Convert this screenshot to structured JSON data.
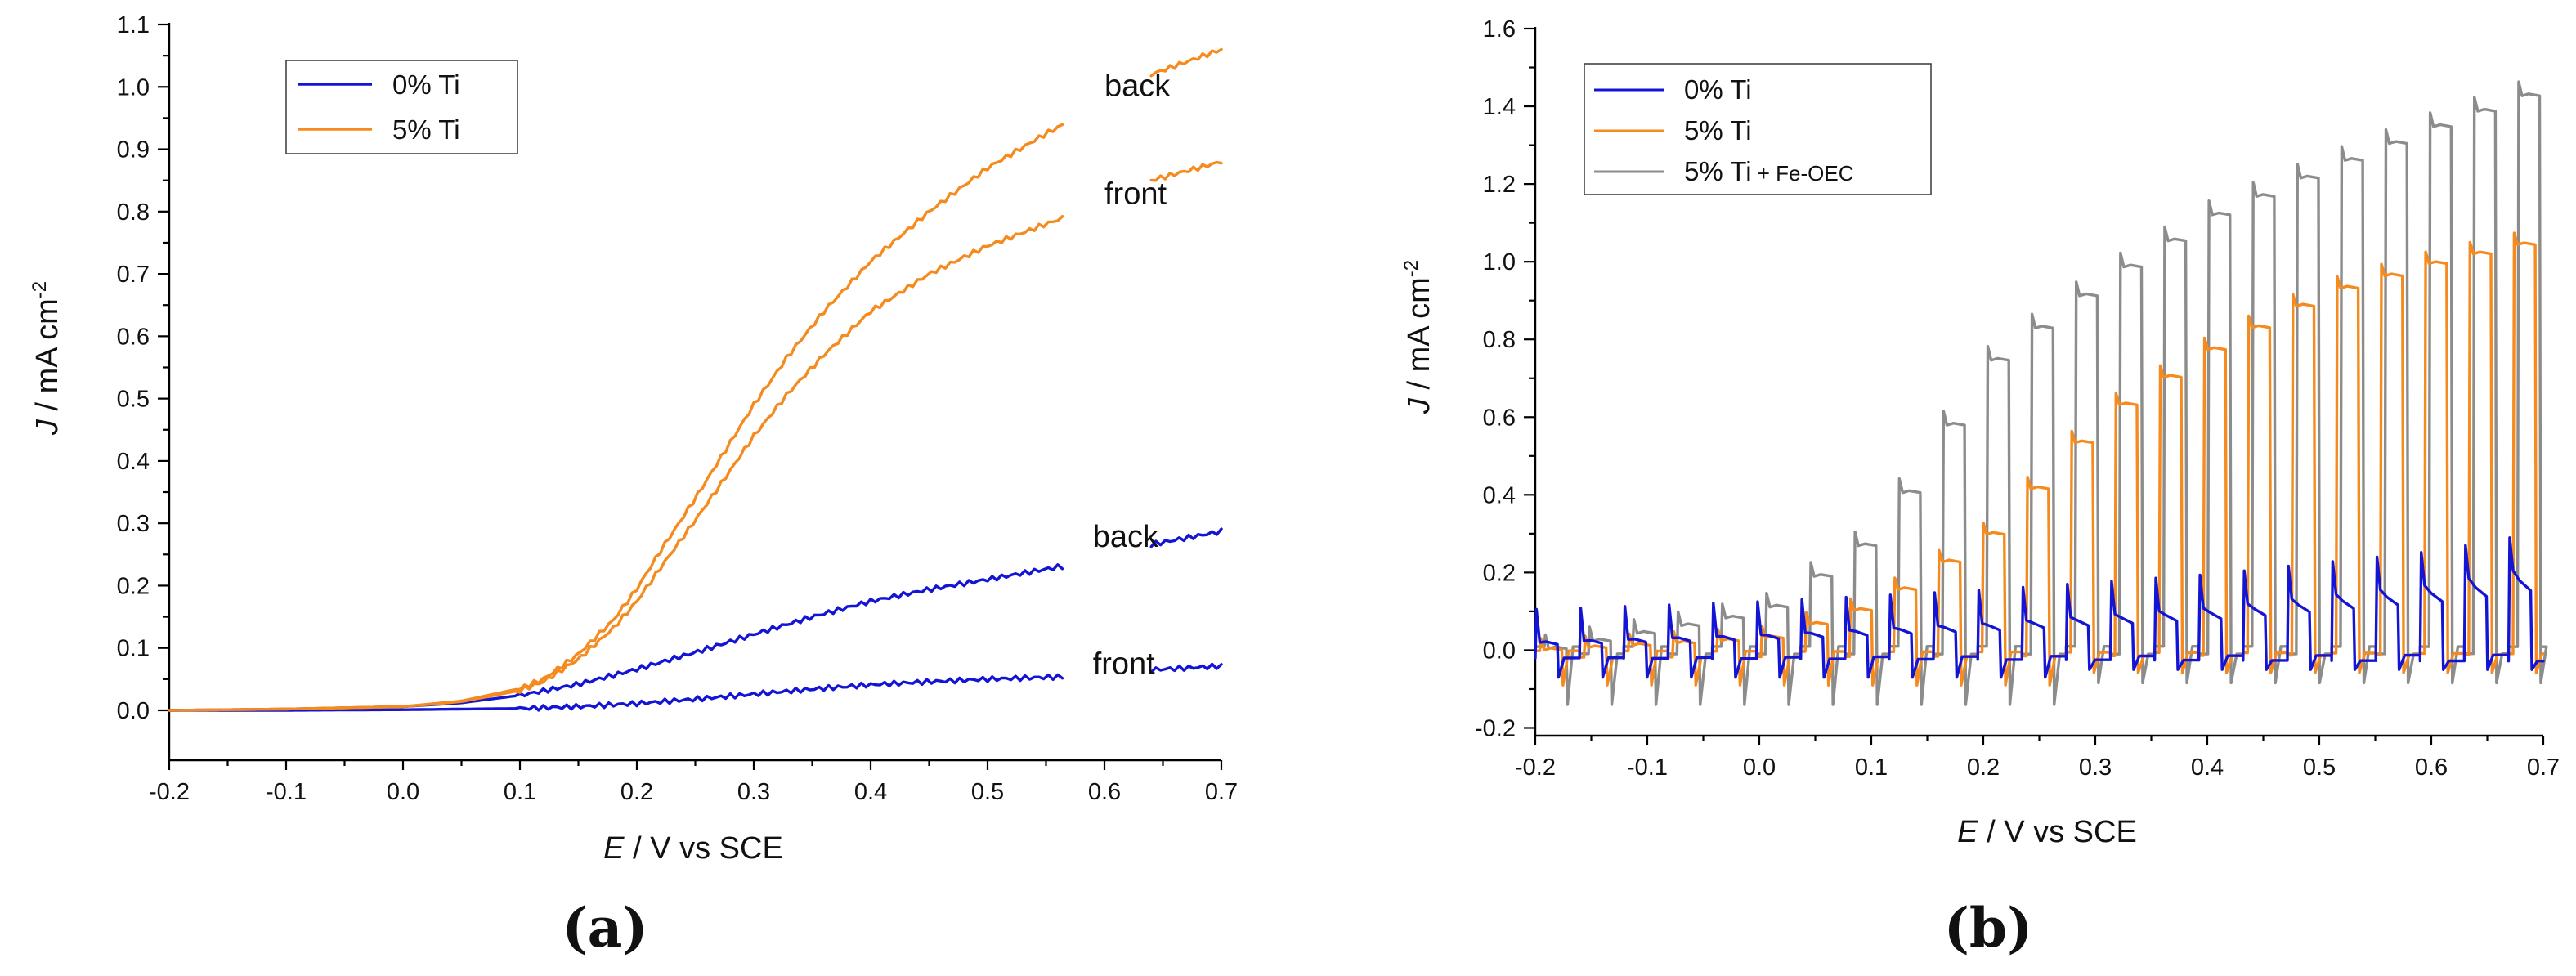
{
  "chart_data": [
    {
      "type": "line",
      "panel_label": "(a)",
      "xlabel_italic": "E",
      "xlabel_rest": " / V vs SCE",
      "ylabel_italic": "J",
      "ylabel_rest": " / mA cm",
      "ylabel_sup": "-2",
      "xlim": [
        -0.2,
        0.7
      ],
      "ylim": [
        -0.08,
        1.1
      ],
      "x_ticks": [
        "-0.2",
        "-0.1",
        "0.0",
        "0.1",
        "0.2",
        "0.3",
        "0.4",
        "0.5",
        "0.6",
        "0.7"
      ],
      "y_ticks": [
        "0.0",
        "0.1",
        "0.2",
        "0.3",
        "0.4",
        "0.5",
        "0.6",
        "0.7",
        "0.8",
        "0.9",
        "1.0",
        "1.1"
      ],
      "legend": [
        {
          "label": "0% Ti",
          "color": "#1414d4"
        },
        {
          "label": "5% Ti",
          "color": "#f58a1f"
        }
      ],
      "series": [
        {
          "name": "0% Ti back",
          "color": "#1414d4",
          "x": [
            -0.2,
            -0.1,
            0.0,
            0.05,
            0.1,
            0.15,
            0.2,
            0.25,
            0.3,
            0.35,
            0.4,
            0.45,
            0.5,
            0.567,
            0.64,
            0.7
          ],
          "y": [
            0.0,
            0.002,
            0.006,
            0.012,
            0.024,
            0.042,
            0.066,
            0.093,
            0.122,
            0.15,
            0.175,
            0.194,
            0.21,
            0.232,
            0.266,
            0.287
          ]
        },
        {
          "name": "0% Ti front",
          "color": "#1414d4",
          "x": [
            -0.2,
            -0.1,
            0.0,
            0.1,
            0.15,
            0.2,
            0.25,
            0.3,
            0.35,
            0.4,
            0.45,
            0.5,
            0.567,
            0.64,
            0.7
          ],
          "y": [
            0.0,
            0.0,
            0.001,
            0.003,
            0.006,
            0.011,
            0.018,
            0.026,
            0.034,
            0.041,
            0.046,
            0.05,
            0.054,
            0.065,
            0.071
          ]
        },
        {
          "name": "5% Ti back",
          "color": "#f58a1f",
          "x": [
            -0.2,
            -0.1,
            0.0,
            0.05,
            0.1,
            0.12,
            0.15,
            0.18,
            0.2,
            0.22,
            0.25,
            0.28,
            0.3,
            0.33,
            0.36,
            0.4,
            0.45,
            0.5,
            0.55,
            0.57,
            0.64,
            0.7
          ],
          "y": [
            0.0,
            0.002,
            0.006,
            0.015,
            0.035,
            0.05,
            0.09,
            0.145,
            0.195,
            0.255,
            0.34,
            0.43,
            0.49,
            0.57,
            0.64,
            0.72,
            0.8,
            0.87,
            0.925,
            0.945,
            1.02,
            1.06
          ]
        },
        {
          "name": "5% Ti front",
          "color": "#f58a1f",
          "x": [
            -0.2,
            -0.1,
            0.0,
            0.05,
            0.1,
            0.12,
            0.15,
            0.18,
            0.2,
            0.22,
            0.25,
            0.28,
            0.3,
            0.33,
            0.36,
            0.4,
            0.45,
            0.5,
            0.55,
            0.565,
            0.64,
            0.7
          ],
          "y": [
            0.0,
            0.002,
            0.006,
            0.014,
            0.032,
            0.046,
            0.082,
            0.132,
            0.175,
            0.228,
            0.305,
            0.385,
            0.44,
            0.51,
            0.57,
            0.64,
            0.7,
            0.745,
            0.78,
            0.79,
            0.85,
            0.88
          ]
        }
      ],
      "gap": [
        0.57,
        0.64
      ],
      "annotations": [
        {
          "text": "back",
          "x": 0.6,
          "y": 0.985
        },
        {
          "text": "front",
          "x": 0.6,
          "y": 0.812
        },
        {
          "text": "back",
          "x": 0.59,
          "y": 0.262
        },
        {
          "text": "front",
          "x": 0.59,
          "y": 0.058
        }
      ]
    },
    {
      "type": "line",
      "panel_label": "(b)",
      "xlabel_italic": "E",
      "xlabel_rest": " / V vs SCE",
      "ylabel_italic": "J",
      "ylabel_rest": " / mA cm",
      "ylabel_sup": "-2",
      "xlim": [
        -0.2,
        0.7
      ],
      "ylim": [
        -0.22,
        1.6
      ],
      "x_ticks": [
        "-0.2",
        "-0.1",
        "0.0",
        "0.1",
        "0.2",
        "0.3",
        "0.4",
        "0.5",
        "0.6",
        "0.7"
      ],
      "y_ticks": [
        "-0.2",
        "0.0",
        "0.2",
        "0.4",
        "0.6",
        "0.8",
        "1.0",
        "1.2",
        "1.4",
        "1.6"
      ],
      "legend": [
        {
          "label": "0% Ti",
          "color": "#1414d4"
        },
        {
          "label": "5% Ti",
          "color": "#f58a1f"
        },
        {
          "label": "5% Ti",
          "suffix": " + Fe-OEC",
          "color": "#8c8c8c"
        }
      ],
      "series": [
        {
          "name": "0% Ti",
          "color": "#1414d4",
          "baseline": -0.02,
          "x_start": -0.2,
          "x_end": 0.7,
          "period": 0.0395,
          "duty": 0.5,
          "plateau_x": [
            -0.2,
            0.0,
            0.2,
            0.4,
            0.6,
            0.7
          ],
          "plateau_y": [
            0.02,
            0.04,
            0.07,
            0.11,
            0.17,
            0.22
          ],
          "spike": 0.085
        },
        {
          "name": "5% Ti",
          "color": "#f58a1f",
          "baseline": -0.01,
          "x_start": -0.2,
          "x_end": 0.7,
          "period": 0.0395,
          "duty": 0.5,
          "plateau_x": [
            -0.2,
            0.0,
            0.1,
            0.2,
            0.3,
            0.4,
            0.5,
            0.6,
            0.7
          ],
          "plateau_y": [
            0.0,
            0.03,
            0.12,
            0.3,
            0.6,
            0.78,
            0.92,
            1.0,
            1.06
          ],
          "spike": 0.1
        },
        {
          "name": "5% Ti + Fe-OEC",
          "color": "#8c8c8c",
          "baseline": 0.0,
          "x_start": -0.2,
          "x_end": 0.7,
          "period": 0.0395,
          "duty": 0.5,
          "plateau_x": [
            -0.2,
            0.0,
            0.1,
            0.2,
            0.3,
            0.4,
            0.5,
            0.6,
            0.7
          ],
          "plateau_y": [
            0.0,
            0.1,
            0.3,
            0.74,
            0.95,
            1.12,
            1.24,
            1.35,
            1.45
          ],
          "spike": 0.12
        }
      ]
    }
  ]
}
